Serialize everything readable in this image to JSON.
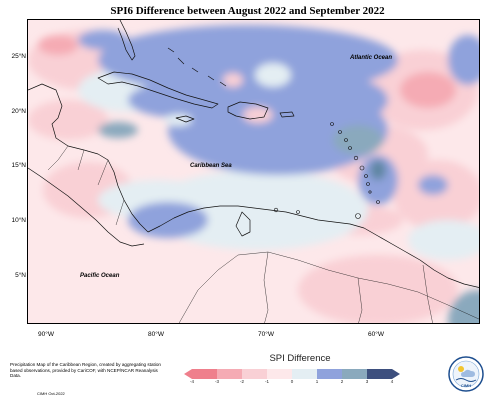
{
  "title": "SPI6 Difference between August 2022 and September 2022",
  "map": {
    "lat_labels": [
      "25°N",
      "20°N",
      "15°N",
      "10°N",
      "5°N"
    ],
    "lon_labels": [
      "90°W",
      "80°W",
      "70°W",
      "60°W"
    ],
    "labels": {
      "atlantic": "Atlantic Ocean",
      "caribbean": "Caribbean Sea",
      "pacific": "Pacific Ocean"
    }
  },
  "legend": {
    "title": "SPI Difference",
    "ticks": [
      "-4",
      "-3",
      "-2",
      "-1",
      "0",
      "1",
      "2",
      "3",
      "4"
    ],
    "colors": [
      "#ef7f8c",
      "#f5abb4",
      "#f9d0d5",
      "#fde8ea",
      "#e4eef3",
      "#8fa2dc",
      "#8aa9bd",
      "#5f86a3",
      "#3d4f7e"
    ]
  },
  "footer": {
    "description": "Precipitation Map of the Caribbean Region, created by aggregating station based observations, provided by CariCOF, with NCEP/NCAR Reanalysis Data.",
    "credit": "CIMH Oct-2022"
  },
  "logo": {
    "icon": "cimh-logo-icon",
    "text": "CIMH"
  }
}
